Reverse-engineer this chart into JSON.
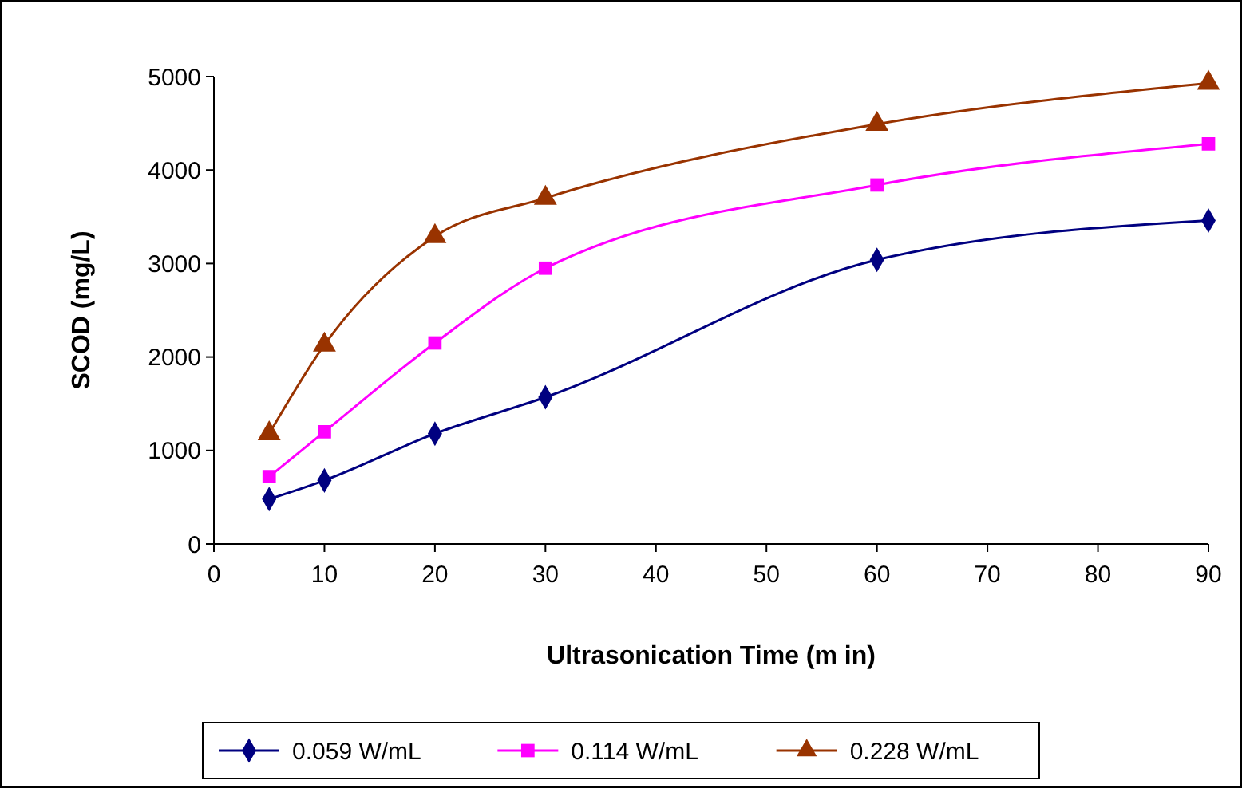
{
  "chart_data": {
    "type": "line",
    "xlabel": "Ultrasonication Time (m in)",
    "ylabel": "SCOD (mg/L)",
    "x": [
      5,
      10,
      20,
      30,
      60,
      90
    ],
    "xlim": [
      0,
      90
    ],
    "xticks": [
      0,
      10,
      20,
      30,
      40,
      50,
      60,
      70,
      80,
      90
    ],
    "ylim": [
      0,
      5000
    ],
    "yticks": [
      0,
      1000,
      2000,
      3000,
      4000,
      5000
    ],
    "grid": false,
    "legend": "bottom",
    "series": [
      {
        "name": "0.059 W/mL",
        "color": "#000080",
        "marker": "diamond",
        "values": [
          480,
          680,
          1180,
          1570,
          3040,
          3460
        ]
      },
      {
        "name": "0.114 W/mL",
        "color": "#ff00ff",
        "marker": "square",
        "values": [
          720,
          1200,
          2150,
          2950,
          3840,
          4280
        ]
      },
      {
        "name": "0.228 W/mL",
        "color": "#993300",
        "marker": "triangle",
        "values": [
          1180,
          2130,
          3290,
          3700,
          4490,
          4930
        ]
      }
    ]
  }
}
